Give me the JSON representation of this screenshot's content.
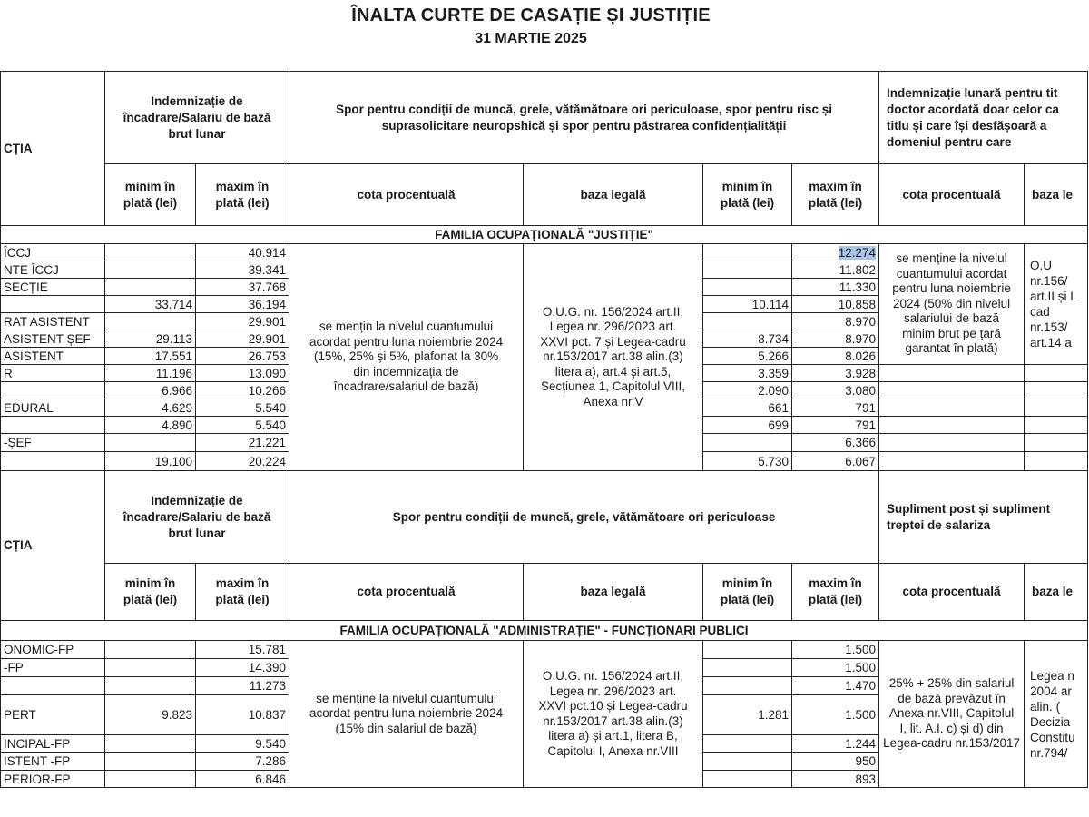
{
  "document": {
    "title": "ÎNALTA CURTE DE CASAȚIE ȘI JUSTIȚIE",
    "date": "31 MARTIE 2025"
  },
  "table_justitie": {
    "headers": {
      "function": "CȚIA",
      "salary": "Indemnizație de\nîncadrare/Salariu de bază\nbrut lunar",
      "spor": "Spor pentru condiții de muncă, grele, vătămătoare ori periculoase, spor pentru risc și\nsuprasolicitare neuropshică și spor pentru păstrarea confidențialității",
      "doctor": "Indemnizație lunară pentru tit\ndoctor acordată doar celor ca\ntitlu și care își desfășoară a\ndomeniul pentru care",
      "min": "minim în\nplată (lei)",
      "max": "maxim în\nplată (lei)",
      "cota": "cota procentuală",
      "baza": "baza legală",
      "baza_cut": "baza le"
    },
    "family": "FAMILIA OCUPAȚIONALĂ \"JUSTIȚIE\"",
    "spor_cota": "se mențin la nivelul cuantumului\nacordat pentru luna noiembrie 2024\n(15%, 25% și 5%, plafonat la 30%\ndin indemnizația de\nîncadrare/salariul de bază)",
    "spor_baza": "O.U.G. nr. 156/2024 art.II,\nLegea nr. 296/2023 art.\nXXVI pct. 7 și Legea-cadru\nnr.153/2017 art.38 alin.(3)\nlitera a), art.4 și art.5,\nSecțiunea 1, Capitolul VIII,\nAnexa nr.V",
    "doctor_cota": "se menține la nivelul\ncuantumului acordat\npentru luna noiembrie\n2024 (50% din nivelul\nsalariului de bază\nminim brut pe țară\ngarantat în plată)",
    "doctor_baza": "O.U\nnr.156/\nart.II și L\ncad\nnr.153/\nart.14 a",
    "rows": [
      {
        "function": "ÎCCJ",
        "sal_min": "",
        "sal_max": "40.914",
        "spor_min": "",
        "spor_max": "12.274"
      },
      {
        "function": "NTE ÎCCJ",
        "sal_min": "",
        "sal_max": "39.341",
        "spor_min": "",
        "spor_max": "11.802"
      },
      {
        "function": "SECȚIE",
        "sal_min": "",
        "sal_max": "37.768",
        "spor_min": "",
        "spor_max": "11.330"
      },
      {
        "function": "",
        "sal_min": "33.714",
        "sal_max": "36.194",
        "spor_min": "10.114",
        "spor_max": "10.858"
      },
      {
        "function": "RAT ASISTENT",
        "sal_min": "",
        "sal_max": "29.901",
        "spor_min": "",
        "spor_max": "8.970"
      },
      {
        "function": "ASISTENT ȘEF",
        "sal_min": "29.113",
        "sal_max": "29.901",
        "spor_min": "8.734",
        "spor_max": "8.970"
      },
      {
        "function": "ASISTENT",
        "sal_min": "17.551",
        "sal_max": "26.753",
        "spor_min": "5.266",
        "spor_max": "8.026"
      },
      {
        "function": "R",
        "sal_min": "11.196",
        "sal_max": "13.090",
        "spor_min": "3.359",
        "spor_max": "3.928"
      },
      {
        "function": "",
        "sal_min": "6.966",
        "sal_max": "10.266",
        "spor_min": "2.090",
        "spor_max": "3.080"
      },
      {
        "function": "EDURAL",
        "sal_min": "4.629",
        "sal_max": "5.540",
        "spor_min": "661",
        "spor_max": "791"
      },
      {
        "function": "",
        "sal_min": "4.890",
        "sal_max": "5.540",
        "spor_min": "699",
        "spor_max": "791"
      },
      {
        "function": "-ȘEF",
        "sal_min": "",
        "sal_max": "21.221",
        "spor_min": "",
        "spor_max": "6.366"
      },
      {
        "function": "",
        "sal_min": "19.100",
        "sal_max": "20.224",
        "spor_min": "5.730",
        "spor_max": "6.067"
      }
    ]
  },
  "table_administratie": {
    "headers": {
      "function": "CȚIA",
      "salary": "Indemnizație de\nîncadrare/Salariu de bază\nbrut lunar",
      "spor": "Spor pentru condiții de muncă, grele, vătămătoare ori periculoase",
      "supliment": "Supliment post și supliment\ntreptei de salariza",
      "min": "minim în\nplată (lei)",
      "max": "maxim în\nplată (lei)",
      "cota": "cota procentuală",
      "baza": "baza legală",
      "baza_cut": "baza le"
    },
    "family": "FAMILIA OCUPAȚIONALĂ \"ADMINISTRAȚIE\" - FUNCȚIONARI PUBLICI",
    "spor_cota": "se menține la nivelul cuantumului\nacordat pentru luna noiembrie 2024\n(15% din salariul de bază)",
    "spor_baza": "O.U.G. nr. 156/2024 art.II,\nLegea nr. 296/2023 art.\nXXVI pct.10 și Legea-cadru\nnr.153/2017 art.38 alin.(3)\nlitera a) și art.1, litera B,\nCapitolul I, Anexa nr.VIII",
    "supl_cota": "25% + 25% din salariul\nde bază prevăzut în\nAnexa nr.VIII,    Capitolul\nI, lit. A.I. c) și d) din\nLegea-cadru nr.153/2017",
    "supl_baza": "Legea n\n2004 ar\nalin. (\nDecizia\nConstitu\nnr.794/",
    "rows": [
      {
        "function": "ONOMIC-FP",
        "sal_min": "",
        "sal_max": "15.781",
        "spor_min": "",
        "spor_max": "1.500"
      },
      {
        "function": "-FP",
        "sal_min": "",
        "sal_max": "14.390",
        "spor_min": "",
        "spor_max": "1.500"
      },
      {
        "function": "",
        "sal_min": "",
        "sal_max": "11.273",
        "spor_min": "",
        "spor_max": "1.470"
      },
      {
        "function": "PERT",
        "sal_min": "9.823",
        "sal_max": "10.837",
        "spor_min": "1.281",
        "spor_max": "1.500"
      },
      {
        "function": "INCIPAL-FP",
        "sal_min": "",
        "sal_max": "9.540",
        "spor_min": "",
        "spor_max": "1.244"
      },
      {
        "function": "ISTENT -FP",
        "sal_min": "",
        "sal_max": "7.286",
        "spor_min": "",
        "spor_max": "950"
      },
      {
        "function": "PERIOR-FP",
        "sal_min": "",
        "sal_max": "6.846",
        "spor_min": "",
        "spor_max": "893"
      }
    ]
  },
  "colors": {
    "selection_highlight": "#a8c6ea",
    "border": "#222222"
  }
}
